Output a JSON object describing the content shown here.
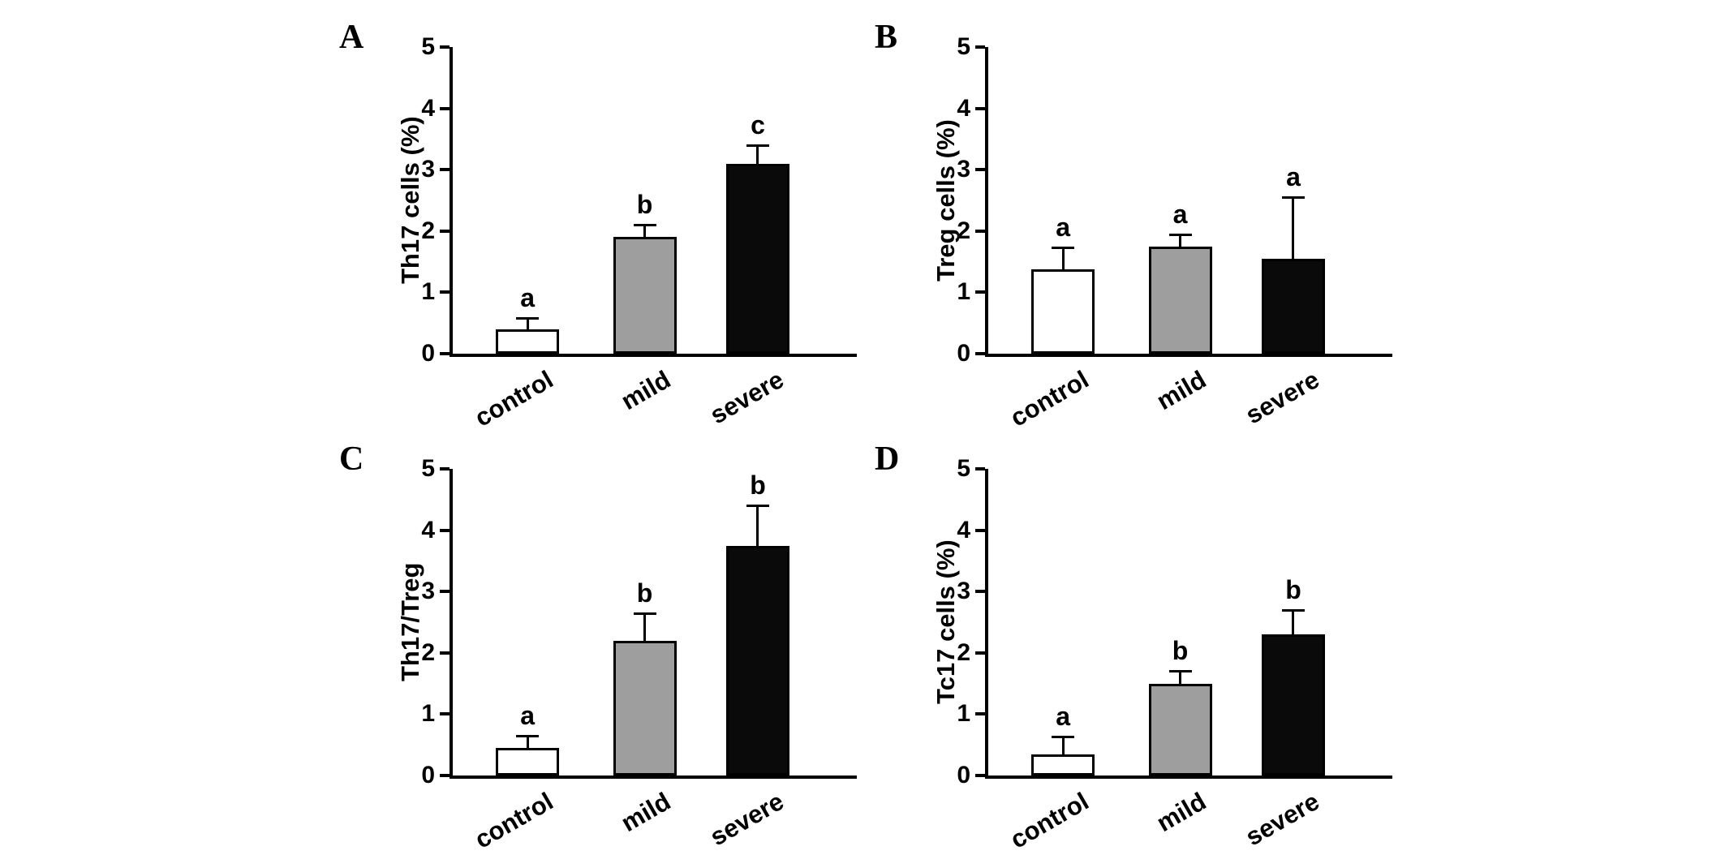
{
  "figure": {
    "background": "#ffffff",
    "axis_color": "#000000"
  },
  "bar_colors": {
    "control": "#ffffff",
    "mild": "#9e9e9e",
    "severe": "#0a0a0a"
  },
  "chart_data": [
    {
      "panel": "A",
      "type": "bar",
      "ylabel": "Th17 cells (%)",
      "xlabel": "",
      "categories": [
        "control",
        "mild",
        "severe"
      ],
      "values": [
        0.4,
        1.9,
        3.1
      ],
      "errors": [
        0.18,
        0.2,
        0.3
      ],
      "sig_letters": [
        "a",
        "b",
        "c"
      ],
      "ylim": [
        0,
        5
      ],
      "yticks": [
        0,
        1,
        2,
        3,
        4,
        5
      ],
      "grid": "off",
      "legend": "none"
    },
    {
      "panel": "B",
      "type": "bar",
      "ylabel": "Treg cells (%)",
      "xlabel": "",
      "categories": [
        "control",
        "mild",
        "severe"
      ],
      "values": [
        1.38,
        1.75,
        1.55
      ],
      "errors": [
        0.35,
        0.2,
        1.0
      ],
      "sig_letters": [
        "a",
        "a",
        "a"
      ],
      "ylim": [
        0,
        5
      ],
      "yticks": [
        0,
        1,
        2,
        3,
        4,
        5
      ],
      "grid": "off",
      "legend": "none"
    },
    {
      "panel": "C",
      "type": "bar",
      "ylabel": "Th17/Treg",
      "xlabel": "",
      "categories": [
        "control",
        "mild",
        "severe"
      ],
      "values": [
        0.45,
        2.2,
        3.75
      ],
      "errors": [
        0.2,
        0.45,
        0.65
      ],
      "sig_letters": [
        "a",
        "b",
        "b"
      ],
      "ylim": [
        0,
        5
      ],
      "yticks": [
        0,
        1,
        2,
        3,
        4,
        5
      ],
      "grid": "off",
      "legend": "none"
    },
    {
      "panel": "D",
      "type": "bar",
      "ylabel": "Tc17 cells (%)",
      "xlabel": "",
      "categories": [
        "control",
        "mild",
        "severe"
      ],
      "values": [
        0.35,
        1.5,
        2.3
      ],
      "errors": [
        0.28,
        0.2,
        0.4
      ],
      "sig_letters": [
        "a",
        "b",
        "b"
      ],
      "ylim": [
        0,
        5
      ],
      "yticks": [
        0,
        1,
        2,
        3,
        4,
        5
      ],
      "grid": "off",
      "legend": "none"
    }
  ]
}
